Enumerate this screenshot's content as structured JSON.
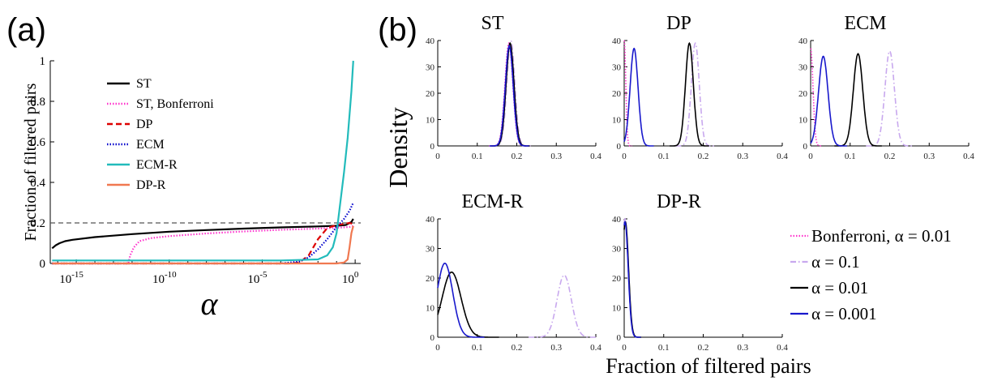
{
  "figure": {
    "panel_a_label": "(a)",
    "panel_b_label": "(b)"
  },
  "chart_data": [
    {
      "type": "line",
      "panel": "(a)",
      "xlabel": "α",
      "ylabel": "Fraction of filtered pairs",
      "xscale": "log",
      "xlim": [
        1e-17,
        1
      ],
      "ylim": [
        0,
        1
      ],
      "xticks": [
        {
          "value": -15,
          "label": "10",
          "sup": "-15"
        },
        {
          "value": -10,
          "label": "10",
          "sup": "-10"
        },
        {
          "value": -5,
          "label": "10",
          "sup": "-5"
        },
        {
          "value": 0,
          "label": "10",
          "sup": "0"
        }
      ],
      "yticks": [
        "0",
        "0.2",
        "0.4",
        "0.6",
        "0.8",
        "1"
      ],
      "reference_line": {
        "y": 0.2,
        "style": "dashed",
        "color": "#555555"
      },
      "legend_position": "upper-left",
      "series": [
        {
          "name": "ST",
          "color": "#000000",
          "dash": "solid",
          "x": [
            -16.3,
            -16.1,
            -15.9,
            -15.6,
            -15.2,
            -14,
            -12,
            -10,
            -8,
            -6,
            -4,
            -2,
            -1,
            -0.5,
            -0.2,
            -0.1
          ],
          "y": [
            0.075,
            0.09,
            0.1,
            0.11,
            0.117,
            0.13,
            0.145,
            0.157,
            0.165,
            0.172,
            0.178,
            0.183,
            0.186,
            0.19,
            0.205,
            0.22
          ]
        },
        {
          "name": "ST, Bonferroni",
          "color": "#ff33cc",
          "dash": "dotted",
          "x": [
            -16.3,
            -12.2,
            -12.1,
            -11.9,
            -11.6,
            -11,
            -10,
            -8,
            -6,
            -4,
            -2,
            -1,
            -0.3,
            -0.1
          ],
          "y": [
            0,
            0,
            0.04,
            0.08,
            0.11,
            0.125,
            0.135,
            0.148,
            0.158,
            0.166,
            0.172,
            0.176,
            0.18,
            0.185
          ]
        },
        {
          "name": "DP",
          "color": "#dd0000",
          "dash": "dashed",
          "x": [
            -16.3,
            -3.5,
            -3,
            -2.5,
            -2,
            -1.5,
            -1,
            -0.6,
            -0.3,
            -0.1
          ],
          "y": [
            0,
            0,
            0.005,
            0.04,
            0.12,
            0.175,
            0.19,
            0.195,
            0.2,
            0.195
          ]
        },
        {
          "name": "ECM",
          "color": "#0000cc",
          "dash": "dotted",
          "x": [
            -16.3,
            -4,
            -3.5,
            -3,
            -2.5,
            -2,
            -1.5,
            -1,
            -0.6,
            -0.3,
            -0.1
          ],
          "y": [
            0,
            0,
            0.005,
            0.01,
            0.03,
            0.07,
            0.12,
            0.18,
            0.22,
            0.26,
            0.3
          ]
        },
        {
          "name": "ECM-R",
          "color": "#22bbbb",
          "dash": "solid",
          "x": [
            -16.3,
            -4,
            -2,
            -1.5,
            -1.2,
            -1,
            -0.8,
            -0.6,
            -0.4,
            -0.2,
            -0.1
          ],
          "y": [
            0.015,
            0.015,
            0.02,
            0.04,
            0.08,
            0.15,
            0.3,
            0.45,
            0.62,
            0.85,
            1.0
          ]
        },
        {
          "name": "DP-R",
          "color": "#f07850",
          "dash": "solid",
          "x": [
            -16.3,
            -1,
            -0.6,
            -0.4,
            -0.3,
            -0.2,
            -0.1
          ],
          "y": [
            0,
            0,
            0.005,
            0.02,
            0.08,
            0.15,
            0.185
          ]
        }
      ]
    },
    {
      "type": "line",
      "panel": "(b)",
      "ylabel": "Density",
      "xlabel": "Fraction of filtered pairs",
      "xlim": [
        0,
        0.4
      ],
      "ylim": [
        0,
        40
      ],
      "xticks": [
        "0",
        "0.1",
        "0.2",
        "0.3",
        "0.4"
      ],
      "yticks": [
        "0",
        "10",
        "20",
        "30",
        "40"
      ],
      "legend_position": "lower-right",
      "legend": [
        {
          "label": "Bonferroni, α = 0.01",
          "color": "#ff33cc",
          "dash": "dotted"
        },
        {
          "label": "α = 0.1",
          "color": "#c8a8ee",
          "dash": "dashdot"
        },
        {
          "label": "α = 0.01",
          "color": "#000000",
          "dash": "solid"
        },
        {
          "label": "α = 0.001",
          "color": "#1818cc",
          "dash": "solid"
        }
      ],
      "subplots": [
        {
          "title": "ST",
          "series": [
            {
              "color": "#ff33cc",
              "dash": "dotted",
              "peak_x": 0.18,
              "peak_y": 39,
              "width": 0.01
            },
            {
              "color": "#c8a8ee",
              "dash": "dashdot",
              "peak_x": 0.185,
              "peak_y": 40,
              "width": 0.01
            },
            {
              "color": "#000000",
              "dash": "solid",
              "peak_x": 0.183,
              "peak_y": 39,
              "width": 0.01
            },
            {
              "color": "#1818cc",
              "dash": "solid",
              "peak_x": 0.181,
              "peak_y": 38,
              "width": 0.01
            }
          ]
        },
        {
          "title": "DP",
          "series": [
            {
              "color": "#ff33cc",
              "dash": "dotted",
              "peak_x": 0.0,
              "peak_y": 40,
              "width": 0.004
            },
            {
              "color": "#c8a8ee",
              "dash": "dashdot",
              "peak_x": 0.18,
              "peak_y": 39,
              "width": 0.01
            },
            {
              "color": "#000000",
              "dash": "solid",
              "peak_x": 0.165,
              "peak_y": 39,
              "width": 0.01
            },
            {
              "color": "#1818cc",
              "dash": "solid",
              "peak_x": 0.025,
              "peak_y": 37,
              "width": 0.01
            }
          ]
        },
        {
          "title": "ECM",
          "series": [
            {
              "color": "#ff33cc",
              "dash": "dotted",
              "peak_x": 0.0,
              "peak_y": 37,
              "width": 0.006
            },
            {
              "color": "#c8a8ee",
              "dash": "dashdot",
              "peak_x": 0.2,
              "peak_y": 36,
              "width": 0.012
            },
            {
              "color": "#000000",
              "dash": "solid",
              "peak_x": 0.12,
              "peak_y": 35,
              "width": 0.012
            },
            {
              "color": "#1818cc",
              "dash": "solid",
              "peak_x": 0.032,
              "peak_y": 34,
              "width": 0.012
            }
          ]
        },
        {
          "title": "ECM-R",
          "series": [
            {
              "color": "#c8a8ee",
              "dash": "dashdot",
              "peak_x": 0.32,
              "peak_y": 21,
              "width": 0.018
            },
            {
              "color": "#000000",
              "dash": "solid",
              "peak_x": 0.035,
              "peak_y": 22,
              "width": 0.024
            },
            {
              "color": "#1818cc",
              "dash": "solid",
              "peak_x": 0.018,
              "peak_y": 25,
              "width": 0.02
            }
          ]
        },
        {
          "title": "DP-R",
          "series": [
            {
              "color": "#c8a8ee",
              "dash": "dashdot",
              "peak_x": 0.002,
              "peak_y": 40,
              "width": 0.008
            },
            {
              "color": "#000000",
              "dash": "solid",
              "peak_x": 0.003,
              "peak_y": 39,
              "width": 0.008
            },
            {
              "color": "#1818cc",
              "dash": "solid",
              "peak_x": 0.002,
              "peak_y": 39,
              "width": 0.008
            }
          ]
        }
      ]
    }
  ]
}
